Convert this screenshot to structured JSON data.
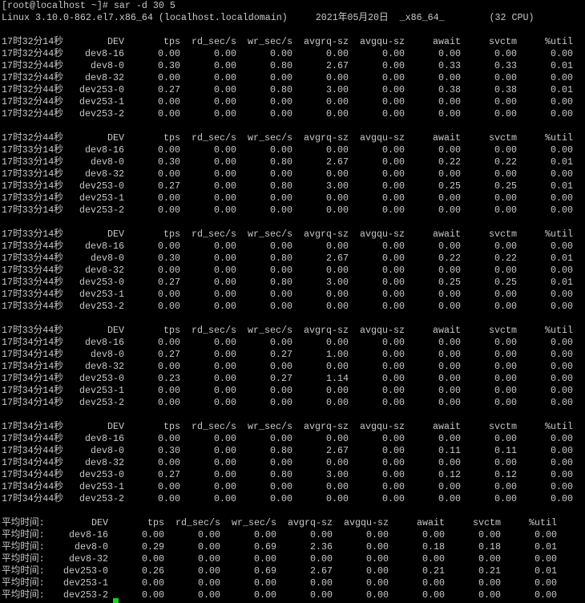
{
  "terminal": {
    "prompt": "[root@localhost ~]# sar -d 30 5",
    "sysinfo": "Linux 3.10.0-862.el7.x86_64 (localhost.localdomain)     2021年05月20日  _x86_64_        (32 CPU)",
    "columns": [
      "DEV",
      "tps",
      "rd_sec/s",
      "wr_sec/s",
      "avgrq-sz",
      "avgqu-sz",
      "await",
      "svctm",
      "%util"
    ],
    "cursor_color": "#1ad31a",
    "blocks": [
      {
        "header_time": "17时32分14秒",
        "rows": [
          [
            "17时32分44秒",
            "dev8-16",
            "0.00",
            "0.00",
            "0.00",
            "0.00",
            "0.00",
            "0.00",
            "0.00",
            "0.00"
          ],
          [
            "17时32分44秒",
            "dev8-0",
            "0.30",
            "0.00",
            "0.80",
            "2.67",
            "0.00",
            "0.33",
            "0.33",
            "0.01"
          ],
          [
            "17时32分44秒",
            "dev8-32",
            "0.00",
            "0.00",
            "0.00",
            "0.00",
            "0.00",
            "0.00",
            "0.00",
            "0.00"
          ],
          [
            "17时32分44秒",
            "dev253-0",
            "0.27",
            "0.00",
            "0.80",
            "3.00",
            "0.00",
            "0.38",
            "0.38",
            "0.01"
          ],
          [
            "17时32分44秒",
            "dev253-1",
            "0.00",
            "0.00",
            "0.00",
            "0.00",
            "0.00",
            "0.00",
            "0.00",
            "0.00"
          ],
          [
            "17时32分44秒",
            "dev253-2",
            "0.00",
            "0.00",
            "0.00",
            "0.00",
            "0.00",
            "0.00",
            "0.00",
            "0.00"
          ]
        ]
      },
      {
        "header_time": "17时32分44秒",
        "rows": [
          [
            "17时33分14秒",
            "dev8-16",
            "0.00",
            "0.00",
            "0.00",
            "0.00",
            "0.00",
            "0.00",
            "0.00",
            "0.00"
          ],
          [
            "17时33分14秒",
            "dev8-0",
            "0.30",
            "0.00",
            "0.80",
            "2.67",
            "0.00",
            "0.22",
            "0.22",
            "0.01"
          ],
          [
            "17时33分14秒",
            "dev8-32",
            "0.00",
            "0.00",
            "0.00",
            "0.00",
            "0.00",
            "0.00",
            "0.00",
            "0.00"
          ],
          [
            "17时33分14秒",
            "dev253-0",
            "0.27",
            "0.00",
            "0.80",
            "3.00",
            "0.00",
            "0.25",
            "0.25",
            "0.01"
          ],
          [
            "17时33分14秒",
            "dev253-1",
            "0.00",
            "0.00",
            "0.00",
            "0.00",
            "0.00",
            "0.00",
            "0.00",
            "0.00"
          ],
          [
            "17时33分14秒",
            "dev253-2",
            "0.00",
            "0.00",
            "0.00",
            "0.00",
            "0.00",
            "0.00",
            "0.00",
            "0.00"
          ]
        ]
      },
      {
        "header_time": "17时33分14秒",
        "rows": [
          [
            "17时33分44秒",
            "dev8-16",
            "0.00",
            "0.00",
            "0.00",
            "0.00",
            "0.00",
            "0.00",
            "0.00",
            "0.00"
          ],
          [
            "17时33分44秒",
            "dev8-0",
            "0.30",
            "0.00",
            "0.80",
            "2.67",
            "0.00",
            "0.22",
            "0.22",
            "0.01"
          ],
          [
            "17时33分44秒",
            "dev8-32",
            "0.00",
            "0.00",
            "0.00",
            "0.00",
            "0.00",
            "0.00",
            "0.00",
            "0.00"
          ],
          [
            "17时33分44秒",
            "dev253-0",
            "0.27",
            "0.00",
            "0.80",
            "3.00",
            "0.00",
            "0.25",
            "0.25",
            "0.01"
          ],
          [
            "17时33分44秒",
            "dev253-1",
            "0.00",
            "0.00",
            "0.00",
            "0.00",
            "0.00",
            "0.00",
            "0.00",
            "0.00"
          ],
          [
            "17时33分44秒",
            "dev253-2",
            "0.00",
            "0.00",
            "0.00",
            "0.00",
            "0.00",
            "0.00",
            "0.00",
            "0.00"
          ]
        ]
      },
      {
        "header_time": "17时33分44秒",
        "rows": [
          [
            "17时34分14秒",
            "dev8-16",
            "0.00",
            "0.00",
            "0.00",
            "0.00",
            "0.00",
            "0.00",
            "0.00",
            "0.00"
          ],
          [
            "17时34分14秒",
            "dev8-0",
            "0.27",
            "0.00",
            "0.27",
            "1.00",
            "0.00",
            "0.00",
            "0.00",
            "0.00"
          ],
          [
            "17时34分14秒",
            "dev8-32",
            "0.00",
            "0.00",
            "0.00",
            "0.00",
            "0.00",
            "0.00",
            "0.00",
            "0.00"
          ],
          [
            "17时34分14秒",
            "dev253-0",
            "0.23",
            "0.00",
            "0.27",
            "1.14",
            "0.00",
            "0.00",
            "0.00",
            "0.00"
          ],
          [
            "17时34分14秒",
            "dev253-1",
            "0.00",
            "0.00",
            "0.00",
            "0.00",
            "0.00",
            "0.00",
            "0.00",
            "0.00"
          ],
          [
            "17时34分14秒",
            "dev253-2",
            "0.00",
            "0.00",
            "0.00",
            "0.00",
            "0.00",
            "0.00",
            "0.00",
            "0.00"
          ]
        ]
      },
      {
        "header_time": "17时34分14秒",
        "rows": [
          [
            "17时34分44秒",
            "dev8-16",
            "0.00",
            "0.00",
            "0.00",
            "0.00",
            "0.00",
            "0.00",
            "0.00",
            "0.00"
          ],
          [
            "17时34分44秒",
            "dev8-0",
            "0.30",
            "0.00",
            "0.80",
            "2.67",
            "0.00",
            "0.11",
            "0.11",
            "0.00"
          ],
          [
            "17时34分44秒",
            "dev8-32",
            "0.00",
            "0.00",
            "0.00",
            "0.00",
            "0.00",
            "0.00",
            "0.00",
            "0.00"
          ],
          [
            "17时34分44秒",
            "dev253-0",
            "0.27",
            "0.00",
            "0.80",
            "3.00",
            "0.00",
            "0.12",
            "0.12",
            "0.00"
          ],
          [
            "17时34分44秒",
            "dev253-1",
            "0.00",
            "0.00",
            "0.00",
            "0.00",
            "0.00",
            "0.00",
            "0.00",
            "0.00"
          ],
          [
            "17时34分44秒",
            "dev253-2",
            "0.00",
            "0.00",
            "0.00",
            "0.00",
            "0.00",
            "0.00",
            "0.00",
            "0.00"
          ]
        ]
      }
    ],
    "average": {
      "header_time": "平均时间:",
      "rows": [
        [
          "平均时间:",
          "dev8-16",
          "0.00",
          "0.00",
          "0.00",
          "0.00",
          "0.00",
          "0.00",
          "0.00",
          "0.00"
        ],
        [
          "平均时间:",
          "dev8-0",
          "0.29",
          "0.00",
          "0.69",
          "2.36",
          "0.00",
          "0.18",
          "0.18",
          "0.01"
        ],
        [
          "平均时间:",
          "dev8-32",
          "0.00",
          "0.00",
          "0.00",
          "0.00",
          "0.00",
          "0.00",
          "0.00",
          "0.00"
        ],
        [
          "平均时间:",
          "dev253-0",
          "0.26",
          "0.00",
          "0.69",
          "2.67",
          "0.00",
          "0.21",
          "0.21",
          "0.01"
        ],
        [
          "平均时间:",
          "dev253-1",
          "0.00",
          "0.00",
          "0.00",
          "0.00",
          "0.00",
          "0.00",
          "0.00",
          "0.00"
        ],
        [
          "平均时间:",
          "dev253-2",
          "0.00",
          "0.00",
          "0.00",
          "0.00",
          "0.00",
          "0.00",
          "0.00",
          "0.00"
        ]
      ]
    }
  }
}
